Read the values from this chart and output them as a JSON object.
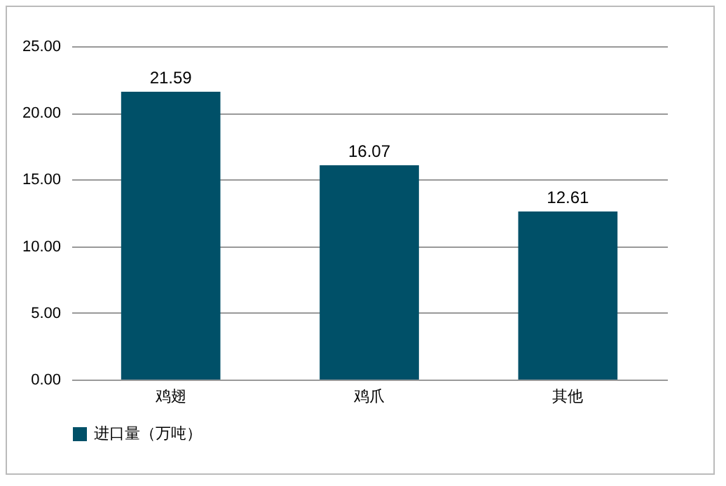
{
  "chart_data": {
    "type": "bar",
    "categories": [
      "鸡翅",
      "鸡爪",
      "其他"
    ],
    "series": [
      {
        "name": "进口量（万吨）",
        "color": "#005068",
        "values": [
          21.59,
          16.07,
          12.61
        ]
      }
    ],
    "ylim": [
      0,
      25
    ],
    "yticks": [
      {
        "value": 0,
        "label": "0.00"
      },
      {
        "value": 5,
        "label": "5.00"
      },
      {
        "value": 10,
        "label": "10.00"
      },
      {
        "value": 15,
        "label": "15.00"
      },
      {
        "value": 20,
        "label": "20.00"
      },
      {
        "value": 25,
        "label": "25.00"
      }
    ],
    "grid": "y",
    "legend": "bottom",
    "data_labels": true
  }
}
